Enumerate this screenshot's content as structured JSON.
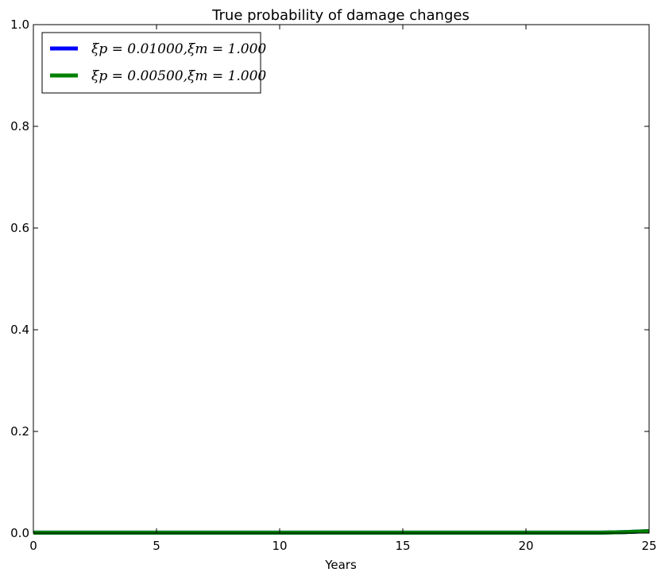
{
  "chart_data": {
    "type": "line",
    "title": "True probability of damage changes",
    "xlabel": "Years",
    "ylabel": "",
    "xlim": [
      0,
      25
    ],
    "ylim": [
      0,
      1.0
    ],
    "xticks": [
      "0",
      "5",
      "10",
      "15",
      "20",
      "25"
    ],
    "yticks": [
      "0.0",
      "0.2",
      "0.4",
      "0.6",
      "0.8",
      "1.0"
    ],
    "grid": false,
    "legend_position": "top-left",
    "series": [
      {
        "name": "ξp = 0.01000,ξm = 1.000",
        "color": "#0000ff",
        "x": [
          0,
          5,
          10,
          15,
          20,
          23,
          24,
          25
        ],
        "y": [
          0.001,
          0.001,
          0.001,
          0.001,
          0.001,
          0.001,
          0.002,
          0.004
        ]
      },
      {
        "name": "ξp = 0.00500,ξm = 1.000",
        "color": "#008000",
        "x": [
          0,
          5,
          10,
          15,
          20,
          23,
          24,
          25
        ],
        "y": [
          0.001,
          0.001,
          0.001,
          0.001,
          0.001,
          0.001,
          0.002,
          0.004
        ]
      }
    ]
  }
}
